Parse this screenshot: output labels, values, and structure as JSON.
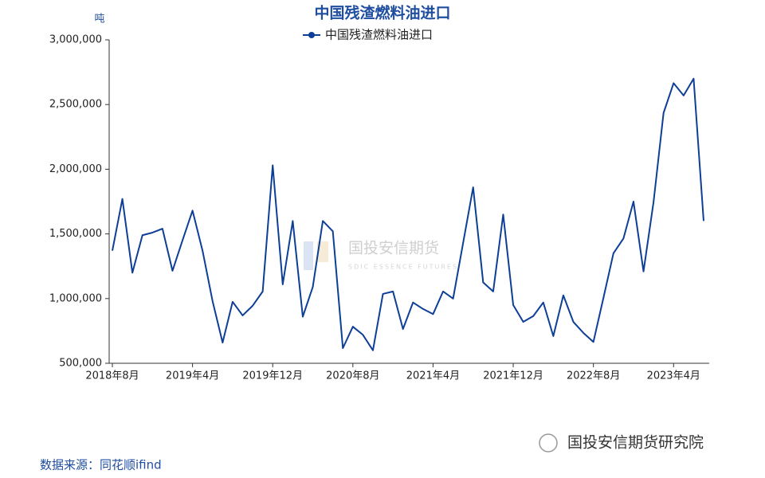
{
  "chart_data": {
    "type": "line",
    "title": "中国残渣燃料油进口",
    "y_label": "吨",
    "source": "数据来源：同花顺ifind",
    "watermark": "国投安信期货",
    "watermark_sub": "SDIC ESSENCE FUTURES",
    "brand": "国投安信期货研究院",
    "categories": [
      "2018年8月",
      null,
      null,
      null,
      null,
      null,
      null,
      null,
      "2019年4月",
      null,
      null,
      null,
      null,
      null,
      null,
      null,
      "2019年12月",
      null,
      null,
      null,
      null,
      null,
      null,
      null,
      "2020年8月",
      null,
      null,
      null,
      null,
      null,
      null,
      null,
      "2021年4月",
      null,
      null,
      null,
      null,
      null,
      null,
      null,
      "2021年12月",
      null,
      null,
      null,
      null,
      null,
      null,
      null,
      "2022年8月",
      null,
      null,
      null,
      null,
      null,
      null,
      null,
      "2023年4月",
      null,
      null,
      null
    ],
    "series": [
      {
        "name": "中国残渣燃料油进口",
        "color": "#0e3f96",
        "values": [
          1370000,
          1770000,
          1200000,
          1490000,
          1510000,
          1540000,
          1215000,
          1450000,
          1680000,
          1370000,
          980000,
          660000,
          975000,
          870000,
          945000,
          1055000,
          2030000,
          1110000,
          1600000,
          860000,
          1090000,
          1600000,
          1520000,
          617000,
          783000,
          720000,
          600000,
          1036000,
          1055000,
          765000,
          970000,
          920000,
          880000,
          1055000,
          1000000,
          1430000,
          1860000,
          1125000,
          1055000,
          1650000,
          950000,
          820000,
          865000,
          970000,
          710000,
          1025000,
          820000,
          735000,
          665000,
          1005000,
          1350000,
          1465000,
          1750000,
          1210000,
          1745000,
          2435000,
          2665000,
          2570000,
          2700000,
          1600000
        ]
      }
    ],
    "ylim": [
      500000,
      3000000
    ],
    "yticks": [
      {
        "value": 500000,
        "label": "500,000"
      },
      {
        "value": 1000000,
        "label": "1,000,000"
      },
      {
        "value": 1500000,
        "label": "1,500,000"
      },
      {
        "value": 2000000,
        "label": "2,000,000"
      },
      {
        "value": 2500000,
        "label": "2,500,000"
      },
      {
        "value": 3000000,
        "label": "3,000,000"
      }
    ],
    "grid": false
  }
}
